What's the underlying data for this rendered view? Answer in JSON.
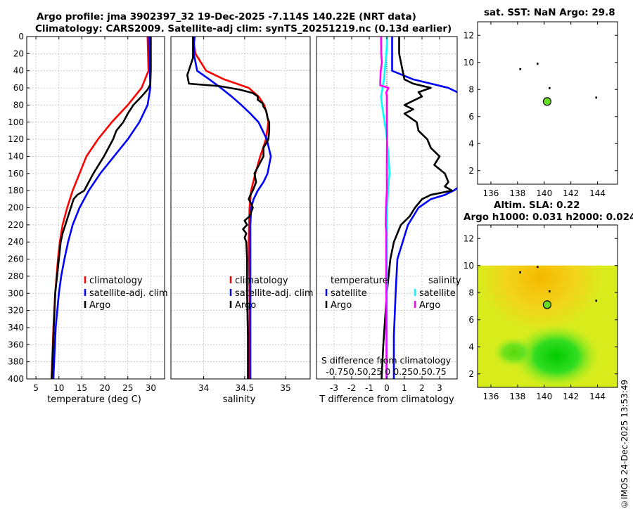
{
  "titles": {
    "main_line1": "Argo profile: jma 3902397_32 19-Dec-2025 -7.114S 140.22E (NRT data)",
    "main_line2": "Climatology: CARS2009. Satellite-adj clim: synTS_20251219.nc (0.13d earlier)",
    "sst": "sat. SST: NaN Argo: 29.8",
    "sla_line1": "Altim. SLA: 0.22",
    "sla_line2": "Argo h1000: 0.031 h2000: 0.024"
  },
  "timestamp": "©IMOS 24-Dec-2025 13:53:49",
  "colors": {
    "climatology": "#ff0000",
    "satellite": "#0000ff",
    "argo": "#000000",
    "t_sat": "#00ffff",
    "s_sat": "#ff00ff"
  },
  "chart_data": [
    {
      "type": "line",
      "name": "temperature",
      "xlabel": "temperature (deg C)",
      "ylabel": "depth",
      "xlim": [
        3,
        33
      ],
      "ylim": [
        400,
        0
      ],
      "xticks": [
        5,
        10,
        15,
        20,
        25,
        30
      ],
      "yticks": [
        0,
        20,
        40,
        60,
        80,
        100,
        120,
        140,
        160,
        180,
        200,
        220,
        240,
        260,
        280,
        300,
        320,
        340,
        360,
        380,
        400
      ],
      "legend": [
        "climatology",
        "satellite-adj. clim",
        "Argo"
      ],
      "series": [
        {
          "name": "climatology",
          "color": "#ff0000",
          "depth": [
            0,
            20,
            40,
            60,
            70,
            80,
            100,
            120,
            140,
            160,
            180,
            200,
            220,
            240,
            260,
            300,
            340,
            400
          ],
          "values": [
            29.3,
            29.4,
            29.5,
            28.0,
            26.5,
            25.0,
            21.5,
            18.5,
            16.0,
            14.5,
            13.0,
            11.8,
            10.8,
            10.2,
            9.8,
            9.2,
            8.8,
            8.4
          ]
        },
        {
          "name": "satellite-adj. clim",
          "color": "#0000ff",
          "depth": [
            0,
            20,
            40,
            60,
            80,
            100,
            120,
            140,
            160,
            180,
            200,
            220,
            240,
            260,
            280,
            300,
            340,
            400
          ],
          "values": [
            29.6,
            29.7,
            29.8,
            29.9,
            29.3,
            27.5,
            25.0,
            22.0,
            19.0,
            16.5,
            14.5,
            13.0,
            12.0,
            11.2,
            10.5,
            10.0,
            9.3,
            8.8
          ]
        },
        {
          "name": "Argo",
          "color": "#000000",
          "depth": [
            0,
            20,
            40,
            56,
            62,
            70,
            80,
            90,
            100,
            110,
            120,
            140,
            160,
            170,
            180,
            185,
            190,
            200,
            210,
            220,
            230,
            240,
            260,
            280,
            300,
            340,
            380,
            400
          ],
          "values": [
            30.0,
            30.0,
            30.0,
            29.9,
            29.3,
            28.0,
            26.2,
            25.0,
            24.0,
            22.5,
            21.8,
            19.8,
            17.5,
            16.5,
            15.5,
            14.0,
            13.2,
            12.6,
            12.0,
            11.4,
            10.8,
            10.4,
            10.0,
            9.6,
            9.2,
            8.9,
            8.6,
            8.4
          ]
        }
      ]
    },
    {
      "type": "line",
      "name": "salinity",
      "xlabel": "salinity",
      "ylim": [
        400,
        0
      ],
      "xlim": [
        33.6,
        35.3
      ],
      "xticks": [
        34,
        34.5,
        35
      ],
      "xtick_labels": [
        "34",
        "34.5",
        "35"
      ],
      "legend": [
        "climatology",
        "satellite-adj. clim",
        "Argo"
      ],
      "series": [
        {
          "name": "climatology",
          "color": "#ff0000",
          "depth": [
            0,
            20,
            40,
            50,
            60,
            70,
            80,
            90,
            100,
            120,
            140,
            160,
            180,
            200,
            240,
            300,
            400
          ],
          "values": [
            33.87,
            33.9,
            34.03,
            34.25,
            34.55,
            34.67,
            34.74,
            34.77,
            34.79,
            34.76,
            34.69,
            34.63,
            34.58,
            34.56,
            34.55,
            34.56,
            34.56
          ]
        },
        {
          "name": "satellite-adj. clim",
          "color": "#0000ff",
          "depth": [
            0,
            10,
            20,
            40,
            50,
            60,
            70,
            80,
            90,
            100,
            120,
            140,
            160,
            170,
            180,
            190,
            200,
            220,
            240,
            300,
            400
          ],
          "values": [
            33.89,
            33.88,
            33.88,
            33.92,
            34.07,
            34.21,
            34.34,
            34.46,
            34.57,
            34.67,
            34.77,
            34.82,
            34.78,
            34.73,
            34.66,
            34.61,
            34.58,
            34.57,
            34.57,
            34.57,
            34.57
          ]
        },
        {
          "name": "Argo",
          "color": "#000000",
          "depth": [
            0,
            25,
            45,
            55,
            58,
            62,
            66,
            70,
            74,
            78,
            82,
            86,
            90,
            95,
            100,
            105,
            110,
            120,
            130,
            140,
            160,
            170,
            180,
            185,
            190,
            195,
            200,
            210,
            215,
            220,
            225,
            230,
            235,
            240,
            260,
            300,
            350,
            400
          ],
          "values": [
            33.87,
            33.87,
            33.8,
            33.82,
            34.2,
            34.44,
            34.6,
            34.66,
            34.66,
            34.72,
            34.73,
            34.76,
            34.77,
            34.78,
            34.8,
            34.8,
            34.8,
            34.79,
            34.73,
            34.73,
            34.62,
            34.64,
            34.6,
            34.57,
            34.55,
            34.58,
            34.6,
            34.56,
            34.5,
            34.53,
            34.48,
            34.52,
            34.5,
            34.52,
            34.53,
            34.53,
            34.54,
            34.54
          ]
        }
      ]
    },
    {
      "type": "line",
      "name": "difference",
      "xlabel": "T difference from climatology",
      "xlabel_top": "S difference from climatology",
      "ylim": [
        400,
        0
      ],
      "xlim": [
        -4,
        4
      ],
      "xticks": [
        -3,
        -2,
        -1,
        0,
        1,
        2,
        3
      ],
      "xtick_labels": [
        "-3",
        "-2",
        "-1",
        "0",
        "1",
        "2",
        "3"
      ],
      "s_tick_text": "-0.750.50.25 0 0.250.50.75",
      "legend_title_t": "temperature",
      "legend_title_s": "salinity",
      "legend": [
        "satellite",
        "Argo",
        "satellite",
        "Argo"
      ],
      "series": [
        {
          "name": "T satellite",
          "color": "#0000ff",
          "depth": [
            0,
            20,
            40,
            50,
            60,
            70,
            80,
            100,
            120,
            140,
            160,
            170,
            180,
            185,
            190,
            200,
            220,
            240,
            260,
            300,
            350,
            400
          ],
          "values": [
            0.3,
            0.3,
            0.3,
            1.5,
            3.5,
            4.5,
            5.0,
            6.0,
            6.5,
            6.0,
            5.0,
            4.5,
            3.8,
            3.3,
            2.5,
            1.8,
            1.2,
            0.9,
            0.6,
            0.5,
            0.4,
            0.4
          ]
        },
        {
          "name": "T Argo",
          "color": "#000000",
          "depth": [
            0,
            20,
            40,
            50,
            55,
            60,
            65,
            70,
            75,
            80,
            85,
            90,
            100,
            110,
            120,
            130,
            140,
            150,
            160,
            170,
            175,
            180,
            185,
            190,
            200,
            210,
            220,
            230,
            240,
            260,
            300,
            360,
            400
          ],
          "values": [
            0.7,
            0.7,
            0.9,
            1.0,
            1.5,
            2.5,
            1.8,
            2.0,
            1.5,
            1.0,
            1.5,
            1.0,
            1.7,
            1.8,
            2.3,
            2.5,
            3.0,
            2.7,
            3.3,
            3.5,
            3.3,
            3.7,
            2.5,
            2.0,
            1.6,
            1.3,
            0.8,
            0.6,
            0.4,
            0.2,
            0.0,
            -0.2,
            -0.3
          ]
        },
        {
          "name": "S satellite",
          "color": "#00ffff",
          "depth": [
            0,
            10,
            20,
            40,
            50,
            60,
            70,
            80,
            90,
            100,
            110,
            120,
            140,
            160,
            170,
            180,
            200,
            220,
            240,
            300,
            400
          ],
          "values": [
            0.0,
            0.0,
            -0.03,
            -0.12,
            -0.17,
            -0.25,
            -0.33,
            -0.28,
            -0.2,
            -0.13,
            -0.05,
            0.0,
            0.1,
            0.15,
            0.1,
            0.07,
            0.02,
            0.0,
            0.01,
            0.01,
            0.01
          ]
        },
        {
          "name": "S Argo",
          "color": "#ff00ff",
          "depth": [
            0,
            20,
            30,
            40,
            50,
            57,
            60,
            65,
            70,
            80,
            90,
            100,
            120,
            140,
            180,
            200,
            220,
            230,
            240,
            300,
            400
          ],
          "values": [
            -0.33,
            -0.32,
            -0.28,
            -0.35,
            -0.37,
            -0.38,
            0.1,
            -0.03,
            0.0,
            0.0,
            0.0,
            0.0,
            0.01,
            0.0,
            0.0,
            -0.05,
            -0.07,
            -0.03,
            -0.04,
            -0.03,
            -0.02
          ]
        }
      ]
    },
    {
      "type": "scatter",
      "name": "sst-map",
      "title": "sat. SST: NaN Argo: 29.8",
      "xlim": [
        135,
        145.5
      ],
      "ylim": [
        1,
        13
      ],
      "xticks": [
        136,
        138,
        140,
        142,
        144
      ],
      "yticks": [
        2,
        4,
        6,
        8,
        10,
        12
      ],
      "points": [
        {
          "x": 140.22,
          "y": 7.11,
          "label": "Argo float"
        }
      ],
      "specks": [
        [
          138.2,
          9.5
        ],
        [
          139.5,
          9.9
        ],
        [
          140.4,
          8.1
        ],
        [
          143.9,
          7.4
        ]
      ]
    },
    {
      "type": "heatmap",
      "name": "sla-map",
      "title": "Altim. SLA: 0.22",
      "xlim": [
        135,
        145.5
      ],
      "ylim": [
        1,
        13
      ],
      "xticks": [
        136,
        138,
        140,
        142,
        144
      ],
      "yticks": [
        2,
        4,
        6,
        8,
        10,
        12
      ],
      "field_top": 10,
      "points": [
        {
          "x": 140.22,
          "y": 7.11,
          "label": "Argo float"
        }
      ],
      "specks": [
        [
          138.2,
          9.5
        ],
        [
          139.5,
          9.9
        ],
        [
          140.4,
          8.1
        ],
        [
          143.9,
          7.4
        ]
      ]
    }
  ]
}
